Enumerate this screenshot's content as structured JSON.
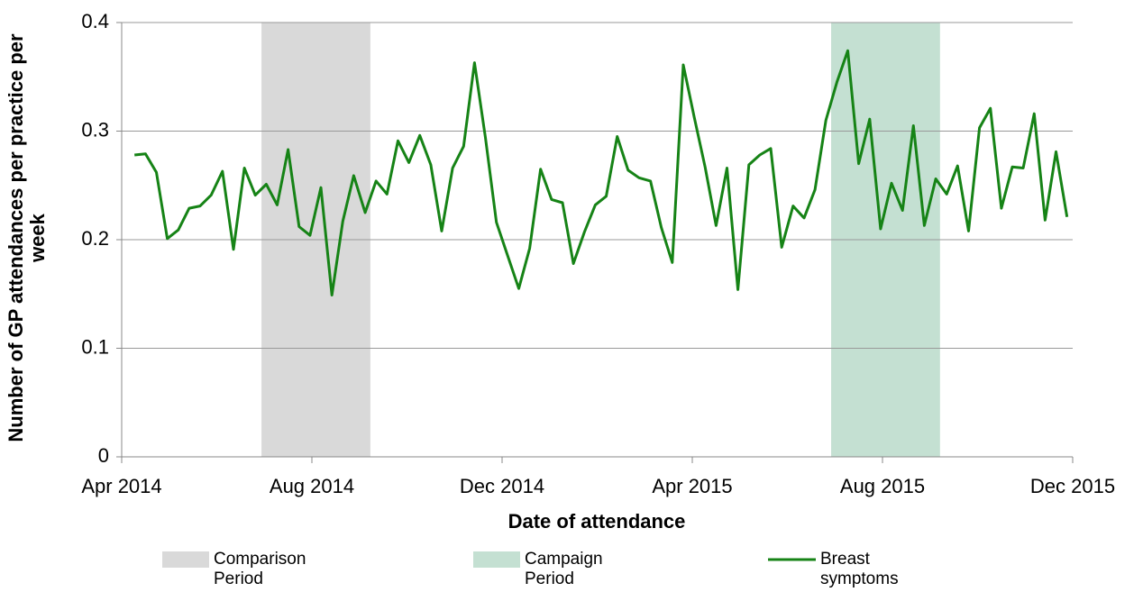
{
  "chart_data": {
    "type": "line",
    "x_label": "Date of attendance",
    "y_label": "Number of GP attendances per practice per week",
    "x": [
      0.27,
      0.5,
      0.73,
      0.96,
      1.19,
      1.42,
      1.65,
      1.88,
      2.12,
      2.35,
      2.58,
      2.81,
      3.04,
      3.27,
      3.5,
      3.73,
      3.96,
      4.19,
      4.42,
      4.65,
      4.88,
      5.12,
      5.35,
      5.58,
      5.81,
      6.04,
      6.27,
      6.5,
      6.73,
      6.96,
      7.19,
      7.42,
      7.65,
      7.88,
      8.12,
      8.35,
      8.58,
      8.81,
      9.04,
      9.27,
      9.5,
      9.73,
      9.96,
      10.19,
      10.42,
      10.65,
      10.88,
      11.12,
      11.35,
      11.58,
      11.81,
      12.04,
      12.27,
      12.5,
      12.73,
      12.96,
      13.19,
      13.42,
      13.65,
      13.88,
      14.12,
      14.35,
      14.58,
      14.81,
      15.04,
      15.27,
      15.5,
      15.73,
      15.96,
      16.19,
      16.42,
      16.65,
      16.88,
      17.12,
      17.35,
      17.58,
      17.81,
      18.04,
      18.27,
      18.5,
      18.73,
      18.96,
      19.19,
      19.42,
      19.65,
      19.88
    ],
    "series": [
      {
        "name": "Breast symptoms",
        "color": "#168316",
        "values": [
          0.278,
          0.279,
          0.262,
          0.201,
          0.209,
          0.229,
          0.231,
          0.241,
          0.263,
          0.191,
          0.266,
          0.241,
          0.251,
          0.232,
          0.283,
          0.212,
          0.204,
          0.248,
          0.149,
          0.217,
          0.259,
          0.225,
          0.254,
          0.242,
          0.291,
          0.271,
          0.296,
          0.269,
          0.208,
          0.266,
          0.286,
          0.363,
          0.294,
          0.216,
          0.185,
          0.155,
          0.192,
          0.265,
          0.237,
          0.234,
          0.178,
          0.207,
          0.232,
          0.24,
          0.295,
          0.264,
          0.257,
          0.254,
          0.211,
          0.179,
          0.361,
          0.313,
          0.267,
          0.213,
          0.266,
          0.154,
          0.269,
          0.278,
          0.284,
          0.193,
          0.231,
          0.22,
          0.246,
          0.31,
          0.345,
          0.374,
          0.27,
          0.311,
          0.21,
          0.252,
          0.227,
          0.305,
          0.213,
          0.256,
          0.242,
          0.268,
          0.208,
          0.303,
          0.321,
          0.229,
          0.267,
          0.266,
          0.316,
          0.218,
          0.281,
          0.221
        ]
      }
    ],
    "bands": [
      {
        "name": "Comparison Period",
        "color": "#d9d9d9",
        "x": [
          2.94,
          5.23
        ]
      },
      {
        "name": "Campaign Period",
        "color": "#c4e0d2",
        "x": [
          14.92,
          17.21
        ]
      }
    ],
    "xlim": [
      0,
      20
    ],
    "xticks": [
      {
        "value": 0,
        "label": "Apr 2014"
      },
      {
        "value": 4,
        "label": "Aug 2014"
      },
      {
        "value": 8,
        "label": "Dec 2014"
      },
      {
        "value": 12,
        "label": "Apr 2015"
      },
      {
        "value": 16,
        "label": "Aug 2015"
      },
      {
        "value": 20,
        "label": "Dec 2015"
      }
    ],
    "ylim": [
      0,
      0.4
    ],
    "yticks": [
      0,
      0.1,
      0.2,
      0.3,
      0.4
    ],
    "grid": true
  }
}
